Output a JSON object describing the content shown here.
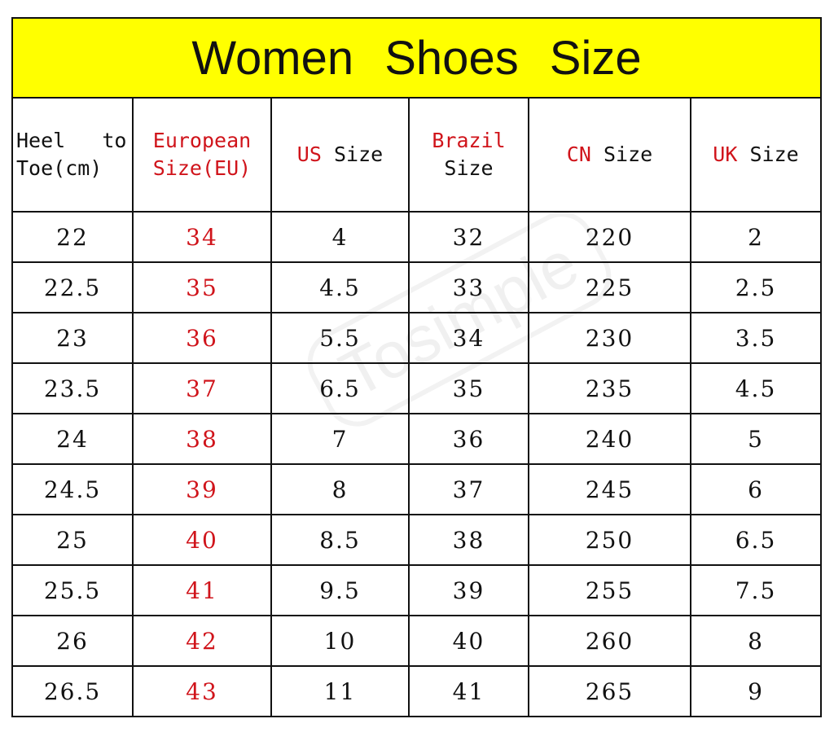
{
  "title": "Women Shoes Size",
  "watermark": "Tosimple",
  "accent_color": "#d0141b",
  "header_bg": "#ffff00",
  "columns": [
    {
      "line1": "Heel   to",
      "line2": "Toe(cm)"
    },
    {
      "line1": "European",
      "line2": "Size(EU)"
    },
    {
      "red": "US",
      "black": "Size"
    },
    {
      "line1": "Brazil",
      "line2": "Size"
    },
    {
      "red": "CN",
      "black": "Size"
    },
    {
      "red": "UK",
      "black": "Size"
    }
  ],
  "rows": [
    [
      "22",
      "34",
      "4",
      "32",
      "220",
      "2"
    ],
    [
      "22.5",
      "35",
      "4.5",
      "33",
      "225",
      "2.5"
    ],
    [
      "23",
      "36",
      "5.5",
      "34",
      "230",
      "3.5"
    ],
    [
      "23.5",
      "37",
      "6.5",
      "35",
      "235",
      "4.5"
    ],
    [
      "24",
      "38",
      "7",
      "36",
      "240",
      "5"
    ],
    [
      "24.5",
      "39",
      "8",
      "37",
      "245",
      "6"
    ],
    [
      "25",
      "40",
      "8.5",
      "38",
      "250",
      "6.5"
    ],
    [
      "25.5",
      "41",
      "9.5",
      "39",
      "255",
      "7.5"
    ],
    [
      "26",
      "42",
      "10",
      "40",
      "260",
      "8"
    ],
    [
      "26.5",
      "43",
      "11",
      "41",
      "265",
      "9"
    ]
  ]
}
